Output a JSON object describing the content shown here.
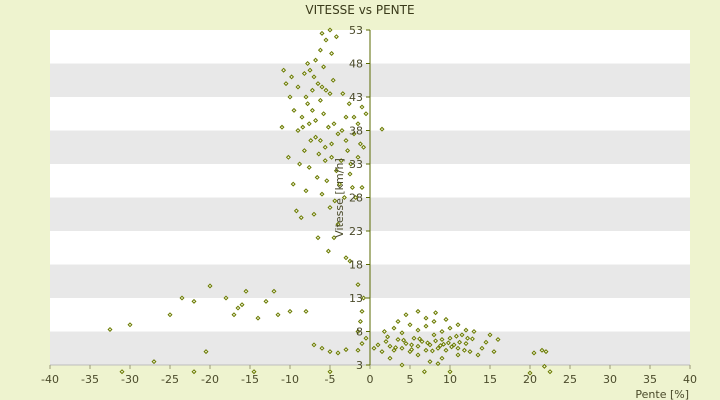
{
  "chart_data": {
    "type": "scatter",
    "title": "VITESSE vs PENTE",
    "xlabel": "Pente [%]",
    "ylabel": "Vitesse [km/h]",
    "xlim": [
      -40,
      40
    ],
    "ylim": [
      3,
      53
    ],
    "xticks": [
      "-40",
      "-35",
      "-30",
      "-25",
      "-20",
      "-15",
      "-10",
      "-5",
      "0",
      "5",
      "10",
      "15",
      "20",
      "25",
      "30",
      "35",
      "40"
    ],
    "yticks": [
      "3",
      "8",
      "13",
      "18",
      "23",
      "28",
      "33",
      "38",
      "43",
      "48",
      "53"
    ],
    "grid": "horizontal-bands",
    "legend": "none",
    "colors": {
      "marker": "#6a7a00",
      "marker_fill": "#f6f9e8",
      "band": "#e8e8e8",
      "plot_bg": "#ffffff",
      "axis": "#5a6a00"
    },
    "series": [
      {
        "points": [
          [
            -7.5,
            47
          ],
          [
            -7,
            46
          ],
          [
            -6.5,
            45
          ],
          [
            -6,
            44.5
          ],
          [
            -5.5,
            44
          ],
          [
            -5,
            43.5
          ],
          [
            -6.2,
            42.5
          ],
          [
            -7.8,
            42
          ],
          [
            -8.5,
            40
          ],
          [
            -7.2,
            41
          ],
          [
            -6.8,
            39.5
          ],
          [
            -5.8,
            40.5
          ],
          [
            -5.2,
            38.5
          ],
          [
            -4.5,
            39
          ],
          [
            -4,
            37.5
          ],
          [
            -3.5,
            38
          ],
          [
            -3,
            36.5
          ],
          [
            -2.8,
            35
          ],
          [
            -4.8,
            36
          ],
          [
            -5.6,
            35.5
          ],
          [
            -6.4,
            34.5
          ],
          [
            -7.4,
            36.5
          ],
          [
            -8.2,
            35
          ],
          [
            -9,
            38
          ],
          [
            -9.5,
            41
          ],
          [
            -10,
            43
          ],
          [
            -10.5,
            45
          ],
          [
            -11,
            38.5
          ],
          [
            -8.8,
            33
          ],
          [
            -7.6,
            32.5
          ],
          [
            -6.6,
            31
          ],
          [
            -5.4,
            30.5
          ],
          [
            -4.2,
            32
          ],
          [
            -3.6,
            33.5
          ],
          [
            -2.5,
            31.5
          ],
          [
            -2.2,
            29.5
          ],
          [
            -3.2,
            28
          ],
          [
            -4.4,
            27.5
          ],
          [
            -5,
            26.5
          ],
          [
            -6,
            28.5
          ],
          [
            -7,
            25.5
          ],
          [
            -8,
            29
          ],
          [
            -9.2,
            26
          ],
          [
            -8.6,
            25
          ],
          [
            -6.5,
            22
          ],
          [
            -5.2,
            20
          ],
          [
            -4,
            24
          ],
          [
            -2,
            40
          ],
          [
            -1.5,
            39
          ],
          [
            -1,
            41.5
          ],
          [
            -0.5,
            40.5
          ],
          [
            -1.2,
            36
          ],
          [
            -2.6,
            42
          ],
          [
            -3.4,
            43.5
          ],
          [
            -4.6,
            45.5
          ],
          [
            -5.8,
            47.5
          ],
          [
            -6.8,
            48.5
          ],
          [
            -7.8,
            48
          ],
          [
            -9.8,
            46
          ],
          [
            -10.8,
            47
          ],
          [
            -6,
            52.5
          ],
          [
            -5.5,
            51.5
          ],
          [
            -5,
            53
          ],
          [
            -4.2,
            52
          ],
          [
            -4.8,
            49.5
          ],
          [
            -6.2,
            50
          ],
          [
            -7.2,
            44
          ],
          [
            -8,
            43
          ],
          [
            -3,
            40
          ],
          [
            -2,
            37.5
          ],
          [
            -1.5,
            34
          ],
          [
            -2.4,
            33
          ],
          [
            -3.8,
            30
          ],
          [
            -1.8,
            28
          ],
          [
            -1,
            29.5
          ],
          [
            -4.5,
            22
          ],
          [
            -3,
            19
          ],
          [
            -2.5,
            18.5
          ],
          [
            1.5,
            38.2
          ],
          [
            -0.8,
            35.5
          ],
          [
            -9.6,
            30
          ],
          [
            -10.2,
            34
          ],
          [
            -8.4,
            38.5
          ],
          [
            -7.6,
            39
          ],
          [
            -6.8,
            37
          ],
          [
            -6.2,
            36.5
          ],
          [
            -5.6,
            33.5
          ],
          [
            -4.8,
            34
          ],
          [
            -9,
            44.5
          ],
          [
            -8.2,
            46.5
          ],
          [
            -32.5,
            8.3
          ],
          [
            -30,
            9
          ],
          [
            -25,
            10.5
          ],
          [
            -23.5,
            13
          ],
          [
            -22,
            12.5
          ],
          [
            -20,
            14.8
          ],
          [
            -18,
            13
          ],
          [
            -17,
            10.5
          ],
          [
            -16.5,
            11.5
          ],
          [
            -16,
            12
          ],
          [
            -15.5,
            14
          ],
          [
            -14,
            10
          ],
          [
            -13,
            12.5
          ],
          [
            -12,
            14
          ],
          [
            -11.5,
            10.5
          ],
          [
            -10,
            11
          ],
          [
            -8,
            11
          ],
          [
            -20.5,
            5
          ],
          [
            -22,
            2
          ],
          [
            -27,
            3.5
          ],
          [
            -31,
            2
          ],
          [
            -14.5,
            2
          ],
          [
            -5,
            2
          ],
          [
            -7,
            6
          ],
          [
            -6,
            5.5
          ],
          [
            -5,
            5
          ],
          [
            -4,
            4.8
          ],
          [
            -3,
            5.3
          ],
          [
            -1.5,
            5.2
          ],
          [
            -1,
            6.2
          ],
          [
            -0.5,
            7
          ],
          [
            -1.5,
            8
          ],
          [
            -1.2,
            9.5
          ],
          [
            -1,
            11
          ],
          [
            -1.5,
            15
          ],
          [
            -0.8,
            13
          ],
          [
            0.5,
            5.5
          ],
          [
            1,
            6
          ],
          [
            1.5,
            5
          ],
          [
            2,
            6.5
          ],
          [
            2.5,
            5.8
          ],
          [
            3,
            5.2
          ],
          [
            3.5,
            6.8
          ],
          [
            4,
            5.5
          ],
          [
            4.5,
            6.2
          ],
          [
            5,
            5
          ],
          [
            5.5,
            7
          ],
          [
            6,
            5.8
          ],
          [
            6.5,
            6.5
          ],
          [
            7,
            5.2
          ],
          [
            7.5,
            6
          ],
          [
            8,
            7.5
          ],
          [
            8.5,
            5.5
          ],
          [
            9,
            6.8
          ],
          [
            9.5,
            5.2
          ],
          [
            10,
            7
          ],
          [
            10.5,
            6
          ],
          [
            11,
            5.5
          ],
          [
            11.5,
            7.5
          ],
          [
            12,
            6.2
          ],
          [
            12.5,
            5
          ],
          [
            13,
            8
          ],
          [
            14,
            5.5
          ],
          [
            15,
            7.5
          ],
          [
            15.5,
            5
          ],
          [
            16,
            6.8
          ],
          [
            3,
            8.5
          ],
          [
            4,
            7.8
          ],
          [
            5,
            9
          ],
          [
            6,
            8.2
          ],
          [
            7,
            8.8
          ],
          [
            8,
            9.5
          ],
          [
            9,
            8
          ],
          [
            10,
            8.5
          ],
          [
            11,
            9
          ],
          [
            12,
            8.2
          ],
          [
            2.5,
            4
          ],
          [
            4,
            3
          ],
          [
            6,
            4.5
          ],
          [
            7.5,
            3.5
          ],
          [
            9,
            4
          ],
          [
            10,
            2
          ],
          [
            11,
            4.5
          ],
          [
            6.8,
            2
          ],
          [
            8.5,
            3.2
          ],
          [
            13.5,
            4.5
          ],
          [
            4.5,
            10.5
          ],
          [
            6,
            11
          ],
          [
            7,
            10
          ],
          [
            8.2,
            10.8
          ],
          [
            9.5,
            9.8
          ],
          [
            3.5,
            9.5
          ],
          [
            1.8,
            8
          ],
          [
            2.2,
            7.2
          ],
          [
            5.2,
            6
          ],
          [
            6.2,
            6.9
          ],
          [
            7.2,
            6.3
          ],
          [
            8.2,
            6.6
          ],
          [
            9.2,
            6.1
          ],
          [
            10.2,
            5.7
          ],
          [
            11.2,
            6.4
          ],
          [
            12.2,
            7
          ],
          [
            3.2,
            5.6
          ],
          [
            4.2,
            6.7
          ],
          [
            5.2,
            5.3
          ],
          [
            7.8,
            5.1
          ],
          [
            8.8,
            5.9
          ],
          [
            9.8,
            6.3
          ],
          [
            10.8,
            7.3
          ],
          [
            11.8,
            5.2
          ],
          [
            12.8,
            6.9
          ],
          [
            14.5,
            6.4
          ],
          [
            20,
            1.8
          ],
          [
            20.5,
            4.8
          ],
          [
            21.5,
            5.2
          ],
          [
            22,
            5
          ],
          [
            22.5,
            2
          ],
          [
            21.8,
            2.8
          ]
        ]
      }
    ]
  }
}
